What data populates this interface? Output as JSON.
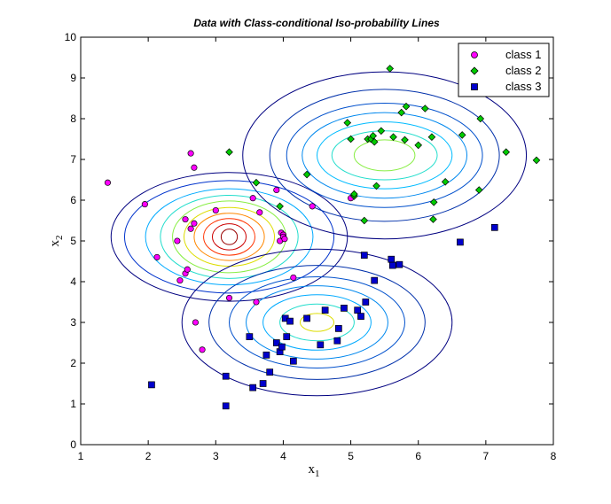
{
  "chart_data": {
    "type": "scatter",
    "title": "Data with Class-conditional Iso-probability Lines",
    "xlabel": "x",
    "xlabel_subscript": "1",
    "ylabel": "x",
    "ylabel_subscript": "2",
    "xlim": [
      1,
      8
    ],
    "ylim": [
      0,
      10
    ],
    "xticks": [
      1,
      2,
      3,
      4,
      5,
      6,
      7,
      8
    ],
    "yticks": [
      0,
      1,
      2,
      3,
      4,
      5,
      6,
      7,
      8,
      9,
      10
    ],
    "grid": false,
    "legend_position": "top-right",
    "series": [
      {
        "name": "class 1",
        "marker": "circle",
        "color": "#ff00ff",
        "points": [
          [
            1.4,
            6.43
          ],
          [
            1.95,
            5.9
          ],
          [
            2.13,
            4.6
          ],
          [
            2.43,
            5.0
          ],
          [
            2.47,
            4.03
          ],
          [
            2.55,
            5.53
          ],
          [
            2.55,
            4.2
          ],
          [
            2.58,
            4.3
          ],
          [
            2.63,
            5.3
          ],
          [
            2.63,
            7.15
          ],
          [
            2.68,
            6.8
          ],
          [
            2.68,
            5.43
          ],
          [
            2.7,
            3.0
          ],
          [
            2.8,
            2.33
          ],
          [
            3.0,
            5.75
          ],
          [
            3.2,
            3.6
          ],
          [
            3.55,
            6.05
          ],
          [
            3.6,
            3.5
          ],
          [
            3.65,
            5.7
          ],
          [
            3.9,
            6.25
          ],
          [
            3.95,
            5.0
          ],
          [
            3.97,
            5.2
          ],
          [
            4.0,
            5.15
          ],
          [
            4.0,
            5.1
          ],
          [
            4.02,
            5.05
          ],
          [
            4.15,
            4.1
          ],
          [
            4.43,
            5.85
          ],
          [
            5.0,
            6.05
          ]
        ]
      },
      {
        "name": "class 2",
        "marker": "diamond",
        "color": "#00cc00",
        "points": [
          [
            3.2,
            7.18
          ],
          [
            3.6,
            6.43
          ],
          [
            3.95,
            5.85
          ],
          [
            4.35,
            6.63
          ],
          [
            4.95,
            7.9
          ],
          [
            5.0,
            7.5
          ],
          [
            5.05,
            6.1
          ],
          [
            5.05,
            6.15
          ],
          [
            5.2,
            5.5
          ],
          [
            5.25,
            7.5
          ],
          [
            5.3,
            7.5
          ],
          [
            5.33,
            7.58
          ],
          [
            5.35,
            7.43
          ],
          [
            5.38,
            6.35
          ],
          [
            5.45,
            7.7
          ],
          [
            5.58,
            9.23
          ],
          [
            5.63,
            7.55
          ],
          [
            5.75,
            8.15
          ],
          [
            5.8,
            7.48
          ],
          [
            5.82,
            8.3
          ],
          [
            6.0,
            7.35
          ],
          [
            6.1,
            8.25
          ],
          [
            6.2,
            7.55
          ],
          [
            6.22,
            5.53
          ],
          [
            6.23,
            5.95
          ],
          [
            6.4,
            6.45
          ],
          [
            6.65,
            7.6
          ],
          [
            6.9,
            6.25
          ],
          [
            6.92,
            8.0
          ],
          [
            7.3,
            7.18
          ],
          [
            7.75,
            6.98
          ]
        ]
      },
      {
        "name": "class 3",
        "marker": "square",
        "color": "#0000cc",
        "points": [
          [
            2.05,
            1.47
          ],
          [
            3.15,
            1.68
          ],
          [
            3.15,
            0.95
          ],
          [
            3.5,
            2.65
          ],
          [
            3.55,
            1.4
          ],
          [
            3.7,
            1.5
          ],
          [
            3.75,
            2.2
          ],
          [
            3.8,
            1.78
          ],
          [
            3.9,
            2.5
          ],
          [
            3.95,
            2.28
          ],
          [
            3.98,
            2.4
          ],
          [
            4.03,
            3.1
          ],
          [
            4.05,
            2.65
          ],
          [
            4.1,
            3.03
          ],
          [
            4.15,
            2.05
          ],
          [
            4.35,
            3.1
          ],
          [
            4.55,
            2.45
          ],
          [
            4.62,
            3.3
          ],
          [
            4.8,
            2.55
          ],
          [
            4.82,
            2.85
          ],
          [
            4.9,
            3.35
          ],
          [
            5.1,
            3.3
          ],
          [
            5.15,
            3.15
          ],
          [
            5.2,
            4.65
          ],
          [
            5.22,
            3.5
          ],
          [
            5.35,
            4.03
          ],
          [
            5.6,
            4.55
          ],
          [
            5.62,
            4.4
          ],
          [
            5.72,
            4.42
          ],
          [
            6.62,
            4.97
          ],
          [
            7.13,
            5.33
          ]
        ]
      }
    ],
    "contour_sets": [
      {
        "class": "class 1",
        "center": [
          3.2,
          5.1
        ],
        "radii_x": [
          0.12,
          0.25,
          0.38,
          0.52,
          0.67,
          0.84,
          1.02,
          1.24,
          1.55,
          1.75
        ],
        "radii_y": [
          0.19,
          0.32,
          0.45,
          0.58,
          0.72,
          0.88,
          1.02,
          1.18,
          1.38,
          1.58
        ],
        "colors": [
          "#990000",
          "#cc0000",
          "#ff3300",
          "#ff8800",
          "#dddd00",
          "#88ee44",
          "#22ddcc",
          "#00aaff",
          "#0033cc",
          "#000080"
        ]
      },
      {
        "class": "class 2",
        "center": [
          5.5,
          7.1
        ],
        "radii_x": [
          0.45,
          0.78,
          1.0,
          1.22,
          1.45,
          1.7,
          2.1
        ],
        "radii_y": [
          0.38,
          0.6,
          0.82,
          1.05,
          1.28,
          1.62,
          2.05
        ],
        "colors": [
          "#88ee44",
          "#22ddcc",
          "#00bbff",
          "#0088ee",
          "#0050cc",
          "#0030aa",
          "#000080"
        ]
      },
      {
        "class": "class 3",
        "center": [
          4.5,
          3.0
        ],
        "radii_x": [
          0.25,
          0.55,
          0.8,
          1.05,
          1.3,
          1.6,
          2.0
        ],
        "radii_y": [
          0.22,
          0.45,
          0.68,
          0.9,
          1.12,
          1.4,
          1.8
        ],
        "colors": [
          "#dddd00",
          "#22ddcc",
          "#00aaff",
          "#0088ee",
          "#0050cc",
          "#0030aa",
          "#000080"
        ]
      }
    ]
  }
}
